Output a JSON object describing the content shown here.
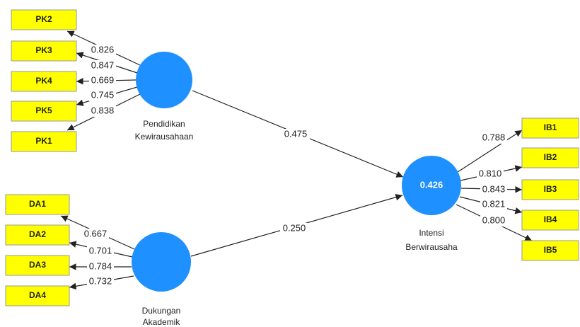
{
  "constructs": [
    {
      "label": [
        "Pendidikan",
        "Kewirausahaan"
      ],
      "indicators": [
        "PK2",
        "PK3",
        "PK4",
        "PK5",
        "PK1"
      ],
      "loadings": [
        "0.826",
        "0.847",
        "0.669",
        "0.745",
        "0.838"
      ]
    },
    {
      "label": [
        "Dukungan",
        "Akademik"
      ],
      "indicators": [
        "DA1",
        "DA2",
        "DA3",
        "DA4"
      ],
      "loadings": [
        "0.667",
        "0.701",
        "0.784",
        "0.732"
      ]
    },
    {
      "label": [
        "Intensi",
        "Berwirausaha"
      ],
      "r_squared": "0.426",
      "indicators": [
        "IB1",
        "IB2",
        "IB3",
        "IB4",
        "IB5"
      ],
      "loadings": [
        "0.788",
        "0.810",
        "0.843",
        "0.821",
        "0.800"
      ]
    }
  ],
  "paths": [
    {
      "from": "Pendidikan Kewirausahaan",
      "to": "Intensi Berwirausaha",
      "coefficient": "0.475"
    },
    {
      "from": "Dukungan Akademik",
      "to": "Intensi Berwirausaha",
      "coefficient": "0.250"
    }
  ]
}
